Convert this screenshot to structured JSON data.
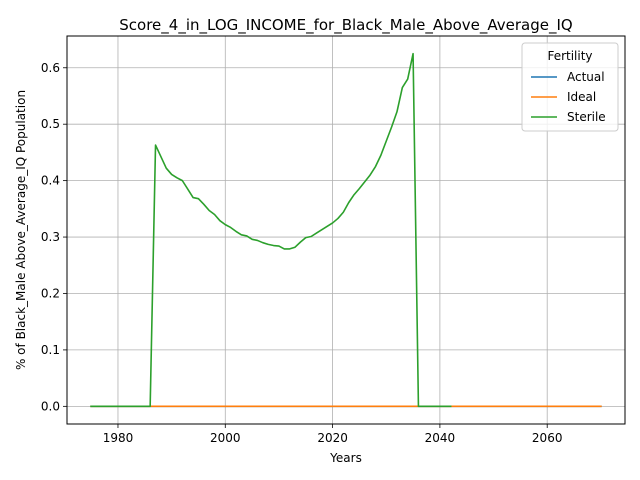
{
  "chart_data": {
    "type": "line",
    "title": "Score_4_in_LOG_INCOME_for_Black_Male_Above_Average_IQ",
    "xlabel": "Years",
    "ylabel": "% of Black_Male Above_Average_IQ Population",
    "xlim": [
      1970.5,
      2074.5
    ],
    "ylim": [
      -0.0313,
      0.6563
    ],
    "xticks": [
      1980,
      2000,
      2020,
      2040,
      2060
    ],
    "yticks": [
      0.0,
      0.1,
      0.2,
      0.3,
      0.4,
      0.5,
      0.6
    ],
    "xtick_labels": [
      "1980",
      "2000",
      "2020",
      "2040",
      "2060"
    ],
    "ytick_labels": [
      "0.0",
      "0.1",
      "0.2",
      "0.3",
      "0.4",
      "0.5",
      "0.6"
    ],
    "grid": true,
    "legend": {
      "title": "Fertility",
      "placement": "top-right"
    },
    "series": [
      {
        "name": "Actual",
        "color": "#1f77b4",
        "x": [
          1975,
          2070
        ],
        "y": [
          0.0,
          0.0
        ]
      },
      {
        "name": "Ideal",
        "color": "#ff7f0e",
        "x": [
          1975,
          2070
        ],
        "y": [
          0.0,
          0.0
        ]
      },
      {
        "name": "Sterile",
        "color": "#2ca02c",
        "x": [
          1975,
          1986,
          1987,
          1989,
          1990,
          1991,
          1992,
          1993,
          1994,
          1995,
          1996,
          1997,
          1998,
          1999,
          2000,
          2001,
          2002,
          2003,
          2004,
          2005,
          2006,
          2007,
          2008,
          2009,
          2010,
          2011,
          2012,
          2013,
          2014,
          2015,
          2016,
          2017,
          2018,
          2019,
          2020,
          2021,
          2022,
          2023,
          2024,
          2025,
          2026,
          2027,
          2028,
          2029,
          2030,
          2031,
          2032,
          2033,
          2034,
          2035,
          2036,
          2042
        ],
        "y": [
          0.0,
          0.0,
          0.463,
          0.422,
          0.411,
          0.405,
          0.4,
          0.385,
          0.37,
          0.368,
          0.358,
          0.347,
          0.34,
          0.329,
          0.322,
          0.317,
          0.31,
          0.304,
          0.302,
          0.296,
          0.294,
          0.29,
          0.287,
          0.285,
          0.284,
          0.279,
          0.279,
          0.282,
          0.291,
          0.299,
          0.301,
          0.307,
          0.313,
          0.319,
          0.325,
          0.333,
          0.344,
          0.361,
          0.375,
          0.386,
          0.398,
          0.41,
          0.425,
          0.445,
          0.47,
          0.495,
          0.522,
          0.565,
          0.58,
          0.625,
          0.0,
          0.0
        ]
      }
    ]
  }
}
